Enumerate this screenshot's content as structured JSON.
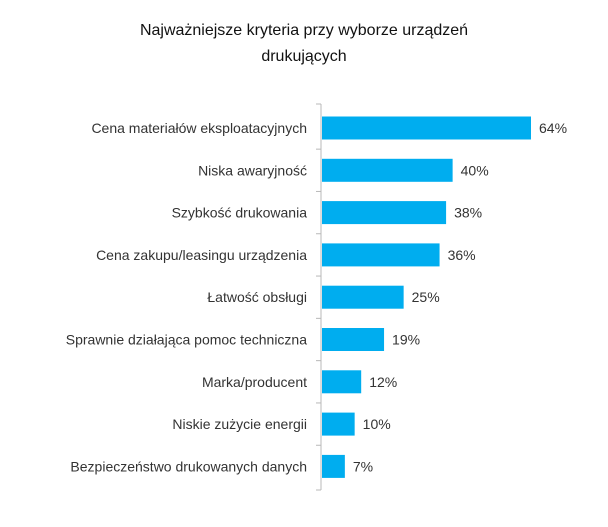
{
  "chart_data": {
    "type": "bar",
    "orientation": "horizontal",
    "title_lines": [
      "Najważniejsze kryteria przy wyborze urządzeń",
      "drukujących"
    ],
    "categories": [
      "Cena materiałów eksploatacyjnych",
      "Niska awaryjność",
      "Szybkość drukowania",
      "Cena zakupu/leasingu urządzenia",
      "Łatwość obsługi",
      "Sprawnie działająca pomoc techniczna",
      "Marka/producent",
      "Niskie zużycie energii",
      "Bezpieczeństwo drukowanych danych"
    ],
    "values": [
      64,
      40,
      38,
      36,
      25,
      19,
      12,
      10,
      7
    ],
    "value_labels": [
      "64%",
      "40%",
      "38%",
      "36%",
      "25%",
      "19%",
      "12%",
      "10%",
      "7%"
    ],
    "xlim": [
      0,
      64
    ],
    "bar_color": "#00adef",
    "grid": false,
    "legend": "none"
  }
}
